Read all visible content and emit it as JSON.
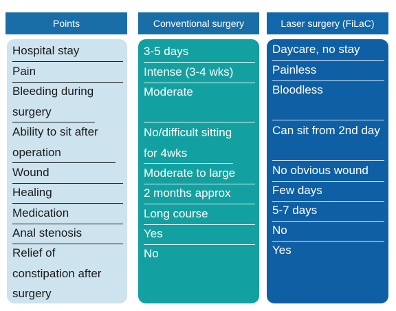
{
  "headers": {
    "points": "Points",
    "conventional": "Conventional surgery",
    "laser": "Laser surgery (FiLaC)"
  },
  "points": [
    "Hospital stay",
    "Pain",
    "Bleeding during surgery",
    "Ability to sit after operation",
    "Wound",
    "Healing",
    "Medication",
    "Anal stenosis",
    "Relief of constipation after surgery"
  ],
  "conventional": [
    "3-5 days",
    "Intense (3-4 wks)",
    "Moderate",
    "No/difficult sitting for 4wks",
    "Moderate to large",
    "2 months approx",
    "Long course",
    "Yes",
    "No"
  ],
  "laser": [
    "Daycare, no stay",
    "Painless",
    "Bloodless",
    "Can sit from 2nd day",
    "No obvious wound",
    "Few days",
    "5-7 days",
    "No",
    "Yes"
  ],
  "colors": {
    "header_blue": "#1a6ea8",
    "points_bg": "#cde3ee",
    "conventional_bg": "#12a1a0",
    "laser_bg": "#0f5fa4"
  }
}
